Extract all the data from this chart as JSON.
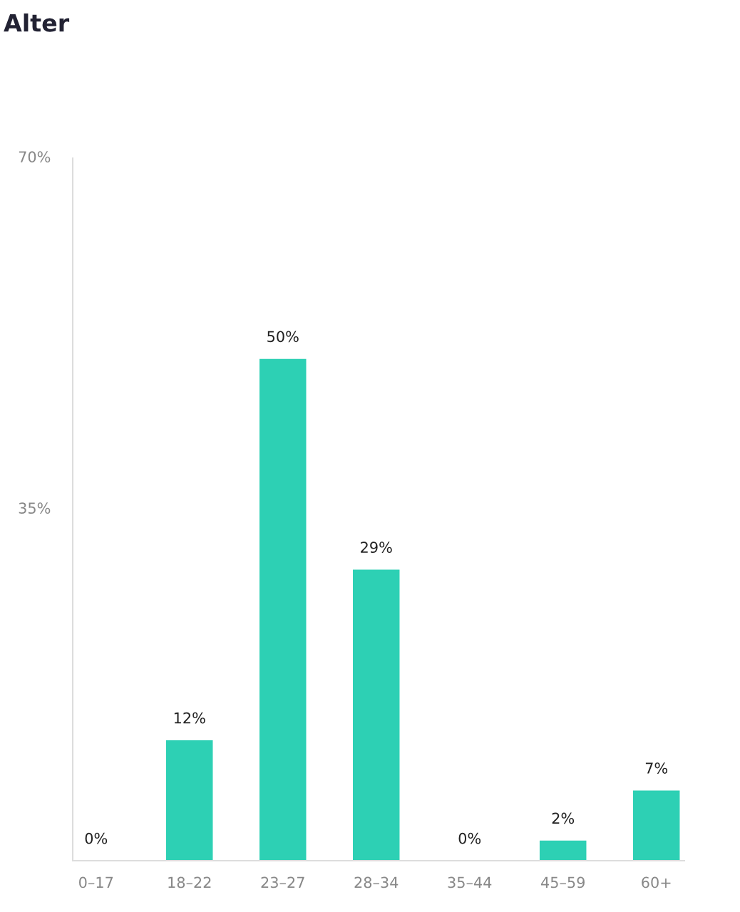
{
  "chart_data": {
    "type": "bar",
    "title": "Alter",
    "categories": [
      "0–17",
      "18–22",
      "23–27",
      "28–34",
      "35–44",
      "45–59",
      "60+"
    ],
    "values": [
      0,
      12,
      50,
      29,
      0,
      2,
      7
    ],
    "value_labels": [
      "0%",
      "12%",
      "50%",
      "29%",
      "0%",
      "2%",
      "7%"
    ],
    "color": "#2dd0b4",
    "ylim": [
      0,
      70
    ],
    "yticks": [
      {
        "value": 0,
        "label": null
      },
      {
        "value": 35,
        "label": "35%"
      },
      {
        "value": 70,
        "label": "70%"
      }
    ],
    "grid": false,
    "legend": false
  }
}
